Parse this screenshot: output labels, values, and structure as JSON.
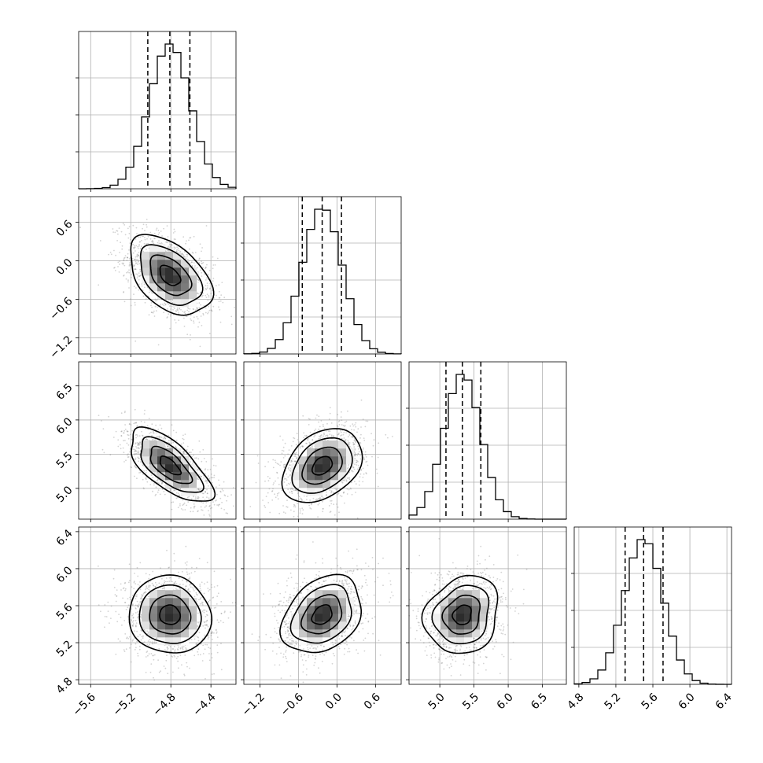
{
  "colors": {
    "scatter": "#808080",
    "line": "#000000",
    "grid": "#b0b0b0",
    "background": "#ffffff"
  },
  "chart_data": {
    "type": "scatter",
    "variant": "corner plot (pairwise 2D histograms with contours, 1D marginal histograms)",
    "grid": true,
    "parameters": [
      {
        "range": [
          -5.72,
          -4.15
        ],
        "ticks": [
          -5.6,
          -5.2,
          -4.8,
          -4.4
        ],
        "tick_labels": [
          "−5.6",
          "−5.2",
          "−4.8",
          "−4.4"
        ],
        "mean": -4.81,
        "sd": 0.205,
        "quantiles": [
          -5.03,
          -4.81,
          -4.61
        ]
      },
      {
        "range": [
          -1.45,
          1.0
        ],
        "ticks": [
          -1.2,
          -0.6,
          0.0,
          0.6
        ],
        "tick_labels": [
          "−1.2",
          "−0.6",
          "0.0",
          "0.6"
        ],
        "mean": -0.23,
        "sd": 0.31,
        "quantiles": [
          -0.54,
          -0.23,
          0.07
        ]
      },
      {
        "range": [
          4.55,
          6.85
        ],
        "ticks": [
          5.0,
          5.5,
          6.0,
          6.5
        ],
        "tick_labels": [
          "5.0",
          "5.5",
          "6.0",
          "6.5"
        ],
        "mean": 5.33,
        "sd": 0.27,
        "quantiles": [
          5.09,
          5.33,
          5.6
        ]
      },
      {
        "range": [
          4.75,
          6.45
        ],
        "ticks": [
          4.8,
          5.2,
          5.6,
          6.0,
          6.4
        ],
        "tick_labels": [
          "4.8",
          "5.2",
          "5.6",
          "6.0",
          "6.4"
        ],
        "mean": 5.5,
        "sd": 0.21,
        "quantiles": [
          5.3,
          5.5,
          5.71
        ]
      }
    ],
    "correlations": [
      {
        "pair": [
          1,
          0
        ],
        "rho": -0.45
      },
      {
        "pair": [
          2,
          0
        ],
        "rho": -0.68
      },
      {
        "pair": [
          2,
          1
        ],
        "rho": 0.35
      },
      {
        "pair": [
          3,
          0
        ],
        "rho": -0.05
      },
      {
        "pair": [
          3,
          1
        ],
        "rho": 0.3
      },
      {
        "pair": [
          3,
          2
        ],
        "rho": 0.15
      }
    ]
  }
}
